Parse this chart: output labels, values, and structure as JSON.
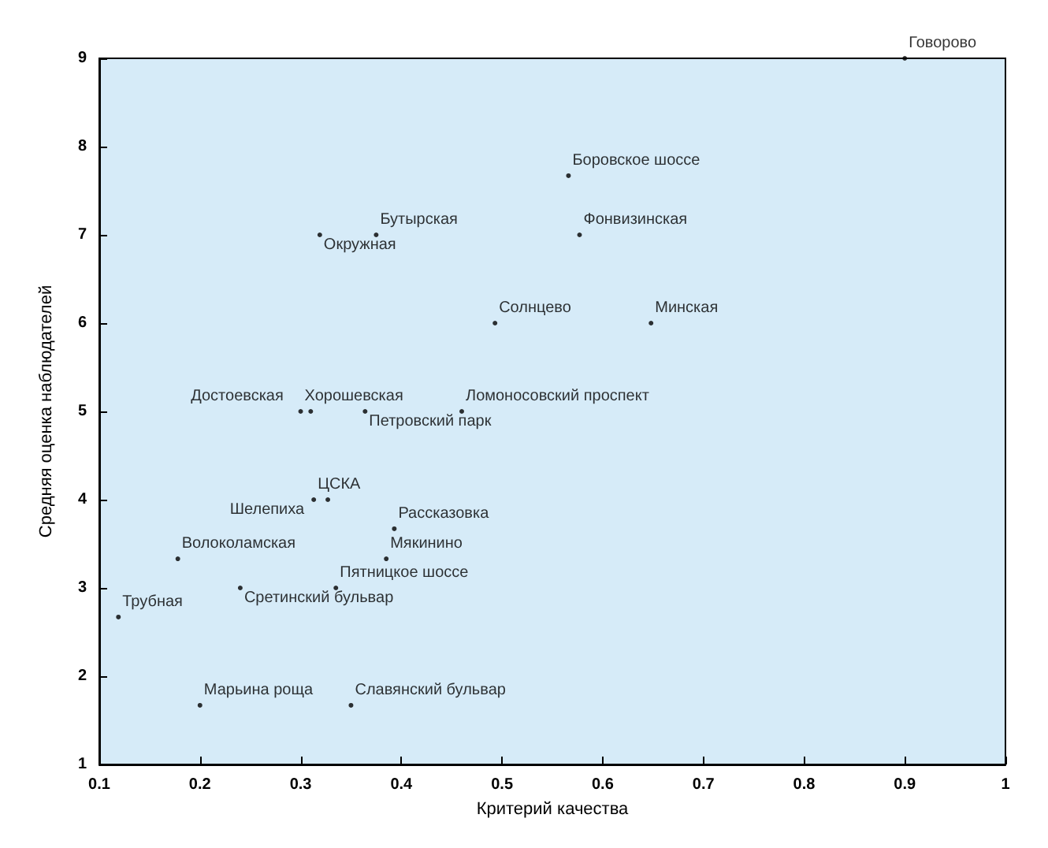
{
  "chart_data": {
    "type": "scatter",
    "xlabel": "Критерий качества",
    "ylabel": "Средняя оценка наблюдателей",
    "x": [
      0.9,
      0.566,
      0.577,
      0.648,
      0.493,
      0.319,
      0.375,
      0.3,
      0.31,
      0.364,
      0.46,
      0.327,
      0.313,
      0.393,
      0.385,
      0.178,
      0.24,
      0.335,
      0.119,
      0.2,
      0.35
    ],
    "series": [
      {
        "color": "#000000",
        "values": [
          9,
          7.67,
          7,
          6,
          6,
          7,
          7,
          5,
          5,
          5,
          5,
          4,
          4,
          3.67,
          3.33,
          3.33,
          3,
          3,
          2.67,
          1.67,
          1.67
        ],
        "value_labels": [
          "Говорово",
          "Боровское шоссе",
          "Фонвизинская",
          "Минская",
          "Солнцево",
          "Окружная",
          "Бутырская",
          "Хорошевская",
          "Достоевская",
          "Петровский парк",
          "Ломоносовский проспект",
          "Шелепиха",
          "ЦСКА",
          "Рассказовка",
          "Мякинино",
          "Волоколамская",
          "Сретинский бульвар",
          "Пятницкое шоссе",
          "Трубная",
          "Марьина роща",
          "Славянский бульвар"
        ]
      }
    ],
    "xlim": [
      0.1,
      1
    ],
    "xticks": [
      0.1,
      0.2,
      0.3,
      0.4,
      0.5,
      0.6,
      0.7,
      0.8,
      0.9,
      1
    ],
    "ylim": [
      1,
      9
    ],
    "yticks": [
      1,
      2,
      3,
      4,
      5,
      6,
      7,
      8,
      9
    ],
    "grid": false,
    "marker": "circle"
  }
}
